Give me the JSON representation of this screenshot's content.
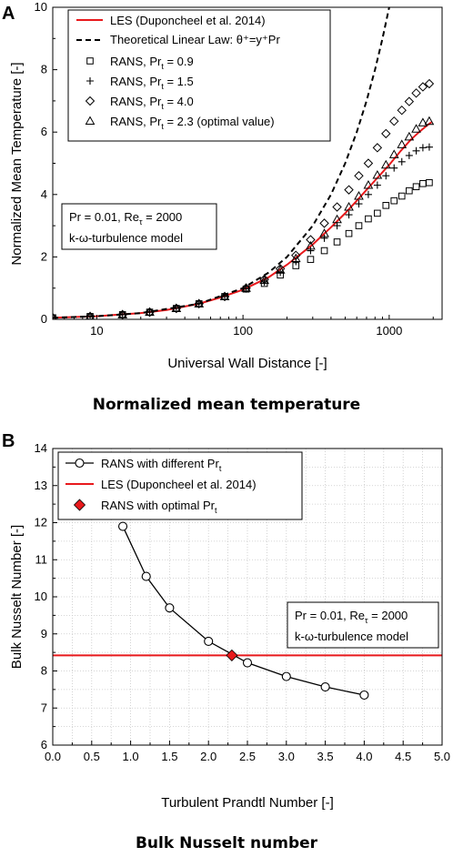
{
  "chart_data": [
    {
      "panel": "A",
      "type": "line",
      "caption": "Normalized mean temperature",
      "xlabel": "Universal Wall Distance [-]",
      "ylabel": "Normalized Mean Temperature [-]",
      "x_scale": "log",
      "xlim": [
        5,
        2300
      ],
      "ylim": [
        0,
        10
      ],
      "x_ticks": [
        10,
        100,
        1000
      ],
      "x_tick_labels": [
        "10",
        "100",
        "1000"
      ],
      "y_ticks": [
        0,
        2,
        4,
        6,
        8,
        10
      ],
      "y_tick_labels": [
        "0",
        "2",
        "4",
        "6",
        "8",
        "10"
      ],
      "legend_position": "top-left",
      "annotation": [
        "Pr = 0.01, Re",
        "τ",
        " = 2000",
        "k-ω-turbulence model"
      ],
      "series": [
        {
          "name": "LES (Duponcheel et al. 2014)",
          "style": "solid-line",
          "color": "#e8191c",
          "x": [
            5,
            10,
            20,
            30,
            50,
            70,
            100,
            150,
            200,
            300,
            400,
            500,
            600,
            700,
            800,
            1000,
            1200,
            1400,
            1600,
            1800,
            1950
          ],
          "y": [
            0.05,
            0.1,
            0.2,
            0.3,
            0.5,
            0.7,
            0.95,
            1.35,
            1.75,
            2.4,
            2.95,
            3.4,
            3.8,
            4.15,
            4.45,
            4.95,
            5.4,
            5.75,
            6.0,
            6.2,
            6.32
          ]
        },
        {
          "name": "Theoretical Linear Law: θ⁺=y⁺Pr",
          "style": "dashed-line",
          "color": "#000000",
          "x": [
            5,
            10,
            20,
            50,
            100,
            150,
            200,
            300,
            400,
            500,
            600,
            700,
            800,
            900,
            1000
          ],
          "y": [
            0.05,
            0.1,
            0.2,
            0.5,
            1.0,
            1.5,
            2.0,
            3.0,
            4.0,
            5.0,
            6.0,
            7.0,
            8.0,
            9.0,
            10.0
          ]
        },
        {
          "name": "RANS, Pr",
          "name_sub": "t",
          "name_tail": " = 0.9",
          "marker": "square",
          "x": [
            5,
            9,
            15,
            23,
            35,
            50,
            75,
            105,
            140,
            180,
            230,
            290,
            360,
            440,
            530,
            620,
            720,
            830,
            950,
            1080,
            1220,
            1370,
            1530,
            1700,
            1880
          ],
          "y": [
            0.05,
            0.09,
            0.15,
            0.23,
            0.35,
            0.5,
            0.73,
            0.97,
            1.15,
            1.42,
            1.72,
            1.92,
            2.2,
            2.48,
            2.75,
            3.0,
            3.22,
            3.4,
            3.65,
            3.8,
            3.95,
            4.12,
            4.25,
            4.35,
            4.38
          ]
        },
        {
          "name": "RANS, Pr",
          "name_sub": "t",
          "name_tail": " = 1.5",
          "marker": "plus",
          "x": [
            5,
            9,
            15,
            23,
            35,
            50,
            75,
            105,
            140,
            180,
            230,
            290,
            360,
            440,
            530,
            620,
            720,
            830,
            950,
            1080,
            1220,
            1370,
            1530,
            1700,
            1880
          ],
          "y": [
            0.05,
            0.09,
            0.15,
            0.23,
            0.35,
            0.5,
            0.73,
            0.98,
            1.2,
            1.5,
            1.85,
            2.2,
            2.6,
            3.0,
            3.35,
            3.7,
            4.0,
            4.3,
            4.6,
            4.85,
            5.05,
            5.25,
            5.4,
            5.5,
            5.52
          ]
        },
        {
          "name": "RANS, Pr",
          "name_sub": "t",
          "name_tail": " = 4.0",
          "marker": "diamond",
          "x": [
            5,
            9,
            15,
            23,
            35,
            50,
            75,
            105,
            140,
            180,
            230,
            290,
            360,
            440,
            530,
            620,
            720,
            830,
            950,
            1080,
            1220,
            1370,
            1530,
            1700,
            1880
          ],
          "y": [
            0.05,
            0.09,
            0.15,
            0.23,
            0.35,
            0.5,
            0.73,
            1.0,
            1.28,
            1.62,
            2.05,
            2.55,
            3.08,
            3.6,
            4.15,
            4.6,
            5.0,
            5.5,
            5.95,
            6.35,
            6.7,
            6.98,
            7.25,
            7.45,
            7.55
          ]
        },
        {
          "name": "RANS, Pr",
          "name_sub": "t",
          "name_tail": " = 2.3 (optimal value)",
          "marker": "triangle",
          "x": [
            5,
            9,
            15,
            23,
            35,
            50,
            75,
            105,
            140,
            180,
            230,
            290,
            360,
            440,
            530,
            620,
            720,
            830,
            950,
            1080,
            1220,
            1370,
            1530,
            1700,
            1880
          ],
          "y": [
            0.05,
            0.09,
            0.15,
            0.23,
            0.35,
            0.5,
            0.73,
            1.0,
            1.25,
            1.58,
            1.95,
            2.35,
            2.75,
            3.2,
            3.6,
            3.95,
            4.3,
            4.62,
            4.95,
            5.28,
            5.6,
            5.85,
            6.1,
            6.3,
            6.35
          ]
        }
      ]
    },
    {
      "panel": "B",
      "type": "line",
      "caption": "Bulk Nusselt number",
      "xlabel": "Turbulent Prandtl Number [-]",
      "ylabel": "Bulk Nusselt Number [-]",
      "xlim": [
        0,
        5
      ],
      "ylim": [
        6,
        14
      ],
      "x_ticks": [
        0,
        0.5,
        1,
        1.5,
        2,
        2.5,
        3,
        3.5,
        4,
        4.5,
        5
      ],
      "x_tick_labels": [
        "0.0",
        "0.5",
        "1.0",
        "1.5",
        "2.0",
        "2.5",
        "3.0",
        "3.5",
        "4.0",
        "4.5",
        "5.0"
      ],
      "y_ticks": [
        6,
        7,
        8,
        9,
        10,
        11,
        12,
        13,
        14
      ],
      "y_tick_labels": [
        "6",
        "7",
        "8",
        "9",
        "10",
        "11",
        "12",
        "13",
        "14"
      ],
      "grid": true,
      "legend_position": "top-left",
      "annotation": [
        "Pr = 0.01, Re",
        "τ",
        " = 2000",
        "k-ω-turbulence model"
      ],
      "series": [
        {
          "name": "RANS with different Pr",
          "name_sub": "t",
          "marker": "circle",
          "style": "solid-line",
          "color": "#000000",
          "x": [
            0.9,
            1.2,
            1.5,
            2.0,
            2.5,
            3.0,
            3.5,
            4.0
          ],
          "y": [
            11.9,
            10.55,
            9.7,
            8.8,
            8.22,
            7.85,
            7.57,
            7.35
          ]
        },
        {
          "name": "LES (Duponcheel et al. 2014)",
          "style": "solid-line",
          "color": "#e8191c",
          "y": 8.42
        },
        {
          "name": "RANS with optimal Pr",
          "name_sub": "t",
          "marker": "diamond-filled",
          "color": "#e8191c",
          "x": [
            2.3
          ],
          "y": [
            8.42
          ]
        }
      ]
    }
  ]
}
